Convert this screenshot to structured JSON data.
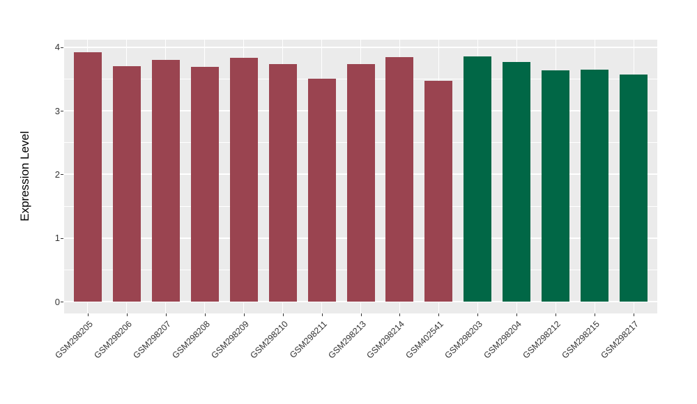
{
  "chart_data": {
    "type": "bar",
    "title": "",
    "xlabel": "",
    "ylabel": "Expression Level",
    "ylim": [
      0,
      4
    ],
    "yticks": [
      0,
      1,
      2,
      3,
      4
    ],
    "yticks_minor": [
      0.5,
      1.5,
      2.5,
      3.5
    ],
    "grid": "white major and minor gridlines on gray panel",
    "legend_position": "none",
    "categories": [
      "GSM298205",
      "GSM298206",
      "GSM298207",
      "GSM298208",
      "GSM298209",
      "GSM298210",
      "GSM298211",
      "GSM298213",
      "GSM298214",
      "GSM402541",
      "GSM298203",
      "GSM298204",
      "GSM298212",
      "GSM298215",
      "GSM298217"
    ],
    "values": [
      3.92,
      3.7,
      3.8,
      3.69,
      3.83,
      3.73,
      3.51,
      3.74,
      3.84,
      3.47,
      3.85,
      3.77,
      3.64,
      3.65,
      3.57
    ],
    "groups": [
      "group1",
      "group1",
      "group1",
      "group1",
      "group1",
      "group1",
      "group1",
      "group1",
      "group1",
      "group1",
      "group2",
      "group2",
      "group2",
      "group2",
      "group2"
    ],
    "colors": {
      "group1": "#9A4450",
      "group2": "#016746",
      "panel_background": "#EBEBEB",
      "gridline": "#FFFFFF",
      "tick_text": "#333333",
      "axis_title_text": "#000000"
    }
  }
}
